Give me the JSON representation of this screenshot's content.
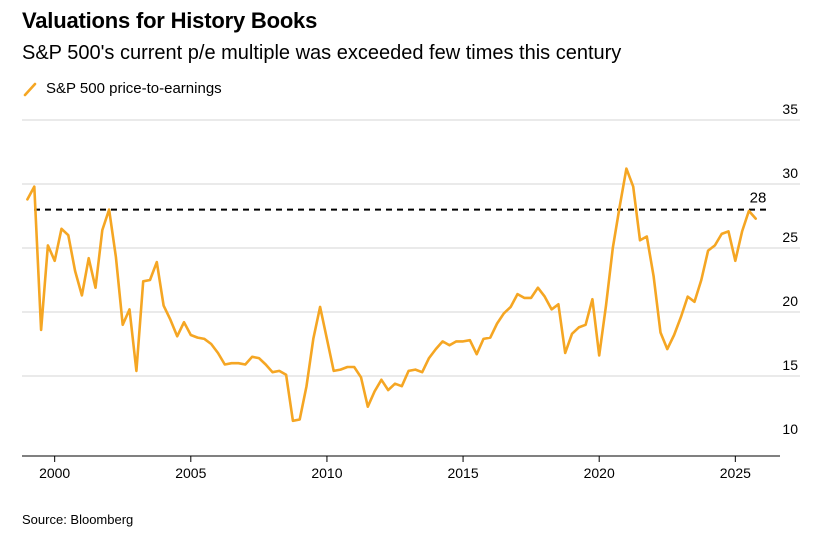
{
  "chart_data": {
    "type": "line",
    "title": "Valuations for History Books",
    "subtitle": "S&P 500's current p/e multiple was exceeded few times this century",
    "legend": [
      "S&P 500 price-to-earnings"
    ],
    "source": "Source: Bloomberg",
    "xlabel": "",
    "ylabel": "",
    "xlim": [
      1998.8,
      2026.2
    ],
    "ylim": [
      10,
      35
    ],
    "x_ticks": [
      "2000",
      "2005",
      "2010",
      "2015",
      "2020",
      "2025"
    ],
    "x_tick_values": [
      2000,
      2005,
      2010,
      2015,
      2020,
      2025
    ],
    "y_ticks": [
      "10",
      "15",
      "20",
      "25",
      "30",
      "35"
    ],
    "y_tick_values": [
      10,
      15,
      20,
      25,
      30,
      35
    ],
    "reference_line": {
      "value": 28,
      "label": "28",
      "style": "dashed"
    },
    "series": [
      {
        "name": "S&P 500 price-to-earnings",
        "color": "#F5A623",
        "x": [
          1999.0,
          1999.25,
          1999.5,
          1999.75,
          2000.0,
          2000.25,
          2000.5,
          2000.75,
          2001.0,
          2001.25,
          2001.5,
          2001.75,
          2002.0,
          2002.25,
          2002.5,
          2002.75,
          2003.0,
          2003.25,
          2003.5,
          2003.75,
          2004.0,
          2004.25,
          2004.5,
          2004.75,
          2005.0,
          2005.25,
          2005.5,
          2005.75,
          2006.0,
          2006.25,
          2006.5,
          2006.75,
          2007.0,
          2007.25,
          2007.5,
          2007.75,
          2008.0,
          2008.25,
          2008.5,
          2008.75,
          2009.0,
          2009.25,
          2009.5,
          2009.75,
          2010.0,
          2010.25,
          2010.5,
          2010.75,
          2011.0,
          2011.25,
          2011.5,
          2011.75,
          2012.0,
          2012.25,
          2012.5,
          2012.75,
          2013.0,
          2013.25,
          2013.5,
          2013.75,
          2014.0,
          2014.25,
          2014.5,
          2014.75,
          2015.0,
          2015.25,
          2015.5,
          2015.75,
          2016.0,
          2016.25,
          2016.5,
          2016.75,
          2017.0,
          2017.25,
          2017.5,
          2017.75,
          2018.0,
          2018.25,
          2018.5,
          2018.75,
          2019.0,
          2019.25,
          2019.5,
          2019.75,
          2020.0,
          2020.25,
          2020.5,
          2020.75,
          2021.0,
          2021.25,
          2021.5,
          2021.75,
          2022.0,
          2022.25,
          2022.5,
          2022.75,
          2023.0,
          2023.25,
          2023.5,
          2023.75,
          2024.0,
          2024.25,
          2024.5,
          2024.75,
          2025.0,
          2025.25,
          2025.5,
          2025.75
        ],
        "values": [
          28.8,
          29.8,
          18.6,
          25.2,
          24.0,
          26.5,
          26.0,
          23.2,
          21.3,
          24.2,
          21.9,
          26.4,
          28.0,
          24.3,
          19.0,
          20.2,
          15.4,
          22.4,
          22.5,
          23.9,
          20.5,
          19.4,
          18.1,
          19.2,
          18.2,
          18.0,
          17.9,
          17.5,
          16.8,
          15.9,
          16.0,
          16.0,
          15.9,
          16.5,
          16.4,
          15.9,
          15.3,
          15.4,
          15.1,
          11.5,
          11.6,
          14.2,
          17.9,
          20.4,
          17.9,
          15.4,
          15.5,
          15.7,
          15.7,
          14.9,
          12.6,
          13.8,
          14.7,
          13.9,
          14.4,
          14.2,
          15.4,
          15.5,
          15.3,
          16.4,
          17.1,
          17.7,
          17.4,
          17.7,
          17.7,
          17.8,
          16.7,
          17.9,
          18.0,
          19.1,
          19.9,
          20.4,
          21.4,
          21.1,
          21.1,
          21.9,
          21.2,
          20.2,
          20.6,
          16.8,
          18.3,
          18.8,
          19.0,
          21.0,
          16.6,
          20.5,
          25.0,
          28.2,
          31.2,
          29.8,
          25.6,
          25.9,
          22.8,
          18.4,
          17.1,
          18.2,
          19.6,
          21.2,
          20.8,
          22.5,
          24.8,
          25.2,
          26.1,
          26.3,
          24.0,
          26.3,
          27.9,
          27.3
        ]
      }
    ]
  }
}
